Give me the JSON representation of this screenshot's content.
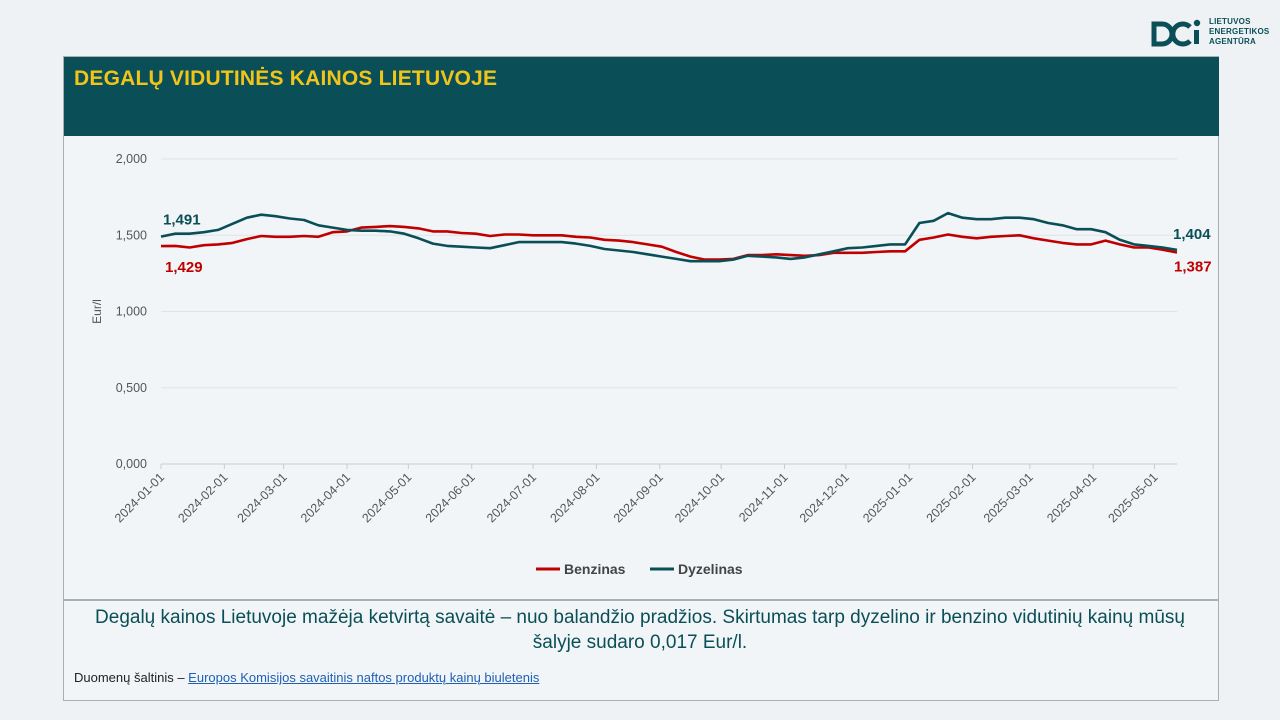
{
  "logo": {
    "line1": "LIETUVOS",
    "line2": "ENERGETIKOS",
    "line3": "AGENTŪRA",
    "color": "#0a4f57"
  },
  "header": {
    "title": "DEGALŲ VIDUTINĖS KAINOS LIETUVOJE"
  },
  "chart_data": {
    "type": "line",
    "title": "",
    "ylabel": "Eur/l",
    "ylim": [
      0,
      2
    ],
    "yticks": [
      0,
      0.5,
      1.0,
      1.5,
      2.0
    ],
    "ytick_labels": [
      "0,000",
      "0,500",
      "1,000",
      "1,500",
      "2,000"
    ],
    "xticks": [
      "2024-01-01",
      "2024-02-01",
      "2024-03-01",
      "2024-04-01",
      "2024-05-01",
      "2024-06-01",
      "2024-07-01",
      "2024-08-01",
      "2024-09-01",
      "2024-10-01",
      "2024-11-01",
      "2024-12-01",
      "2025-01-01",
      "2025-02-01",
      "2025-03-01",
      "2025-04-01",
      "2025-05-01"
    ],
    "grid": true,
    "legend_position": "bottom",
    "x": [
      "2024-01-01",
      "2024-01-08",
      "2024-01-15",
      "2024-01-22",
      "2024-01-29",
      "2024-02-05",
      "2024-02-12",
      "2024-02-19",
      "2024-02-26",
      "2024-03-04",
      "2024-03-11",
      "2024-03-18",
      "2024-03-25",
      "2024-04-01",
      "2024-04-08",
      "2024-04-15",
      "2024-04-22",
      "2024-04-29",
      "2024-05-06",
      "2024-05-13",
      "2024-05-20",
      "2024-05-27",
      "2024-06-03",
      "2024-06-10",
      "2024-06-17",
      "2024-06-24",
      "2024-07-01",
      "2024-07-08",
      "2024-07-15",
      "2024-07-22",
      "2024-07-29",
      "2024-08-05",
      "2024-08-12",
      "2024-08-19",
      "2024-08-26",
      "2024-09-02",
      "2024-09-09",
      "2024-09-16",
      "2024-09-23",
      "2024-09-30",
      "2024-10-07",
      "2024-10-14",
      "2024-10-21",
      "2024-10-28",
      "2024-11-04",
      "2024-11-11",
      "2024-11-18",
      "2024-11-25",
      "2024-12-02",
      "2024-12-09",
      "2024-12-16",
      "2024-12-23",
      "2024-12-30",
      "2025-01-06",
      "2025-01-13",
      "2025-01-20",
      "2025-01-27",
      "2025-02-03",
      "2025-02-10",
      "2025-02-17",
      "2025-02-24",
      "2025-03-03",
      "2025-03-10",
      "2025-03-17",
      "2025-03-24",
      "2025-03-31",
      "2025-04-07",
      "2025-04-14",
      "2025-04-21",
      "2025-04-28",
      "2025-05-05",
      "2025-05-12"
    ],
    "series": [
      {
        "name": "Benzinas",
        "color": "#c00000",
        "values": [
          1.429,
          1.43,
          1.42,
          1.435,
          1.44,
          1.45,
          1.475,
          1.495,
          1.49,
          1.49,
          1.495,
          1.49,
          1.52,
          1.525,
          1.55,
          1.555,
          1.56,
          1.555,
          1.545,
          1.525,
          1.525,
          1.515,
          1.51,
          1.495,
          1.505,
          1.505,
          1.5,
          1.5,
          1.5,
          1.49,
          1.485,
          1.47,
          1.465,
          1.455,
          1.44,
          1.425,
          1.39,
          1.36,
          1.34,
          1.34,
          1.345,
          1.37,
          1.37,
          1.375,
          1.37,
          1.365,
          1.37,
          1.385,
          1.385,
          1.385,
          1.39,
          1.395,
          1.395,
          1.47,
          1.485,
          1.505,
          1.49,
          1.48,
          1.49,
          1.495,
          1.5,
          1.48,
          1.465,
          1.45,
          1.44,
          1.44,
          1.465,
          1.44,
          1.42,
          1.42,
          1.405,
          1.387
        ]
      },
      {
        "name": "Dyzelinas",
        "color": "#0a4f57",
        "values": [
          1.491,
          1.51,
          1.51,
          1.52,
          1.535,
          1.575,
          1.615,
          1.635,
          1.625,
          1.61,
          1.6,
          1.565,
          1.55,
          1.535,
          1.53,
          1.53,
          1.525,
          1.51,
          1.48,
          1.445,
          1.43,
          1.425,
          1.42,
          1.415,
          1.435,
          1.455,
          1.455,
          1.455,
          1.455,
          1.445,
          1.43,
          1.41,
          1.4,
          1.39,
          1.375,
          1.36,
          1.345,
          1.33,
          1.33,
          1.33,
          1.34,
          1.365,
          1.36,
          1.355,
          1.345,
          1.355,
          1.375,
          1.395,
          1.415,
          1.42,
          1.43,
          1.44,
          1.44,
          1.58,
          1.595,
          1.645,
          1.615,
          1.605,
          1.605,
          1.615,
          1.615,
          1.605,
          1.58,
          1.565,
          1.54,
          1.54,
          1.52,
          1.47,
          1.44,
          1.43,
          1.42,
          1.404
        ]
      }
    ],
    "end_labels": {
      "benzinas_start": "1,429",
      "benzinas_end": "1,387",
      "dyzelinas_start": "1,491",
      "dyzelinas_end": "1,404"
    }
  },
  "note": {
    "text": "Degalų kainos Lietuvoje mažėja ketvirtą savaitė – nuo balandžio pradžios. Skirtumas tarp dyzelino ir benzino vidutinių kainų mūsų šalyje sudaro 0,017 Eur/l."
  },
  "source": {
    "label": "Duomenų šaltinis – ",
    "link_text": "Europos Komisijos savaitinis naftos produktų kainų biuletenis"
  }
}
